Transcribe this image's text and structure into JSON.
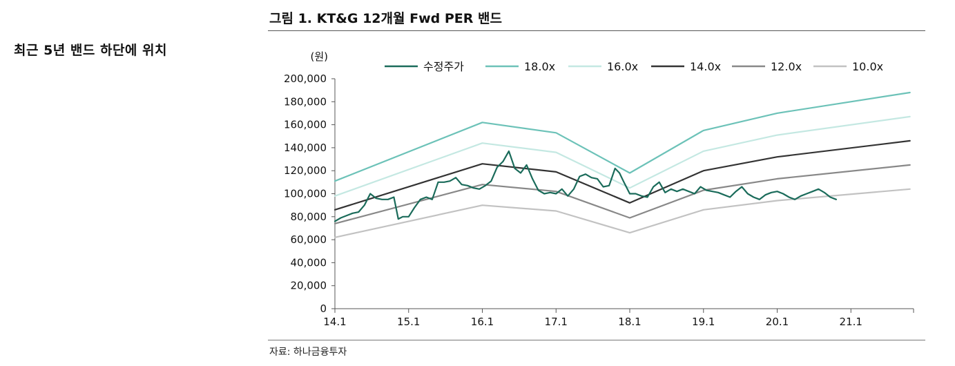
{
  "side_heading": "최근 5년 밴드 하단에 위치",
  "figure_title": "그림 1. KT&G 12개월 Fwd PER 밴드",
  "source_note": "자료: 하나금융투자",
  "colors": {
    "price": "#1a6b5a",
    "band_18": "#6cc2b8",
    "band_16": "#c4e8e2",
    "band_14": "#333333",
    "band_12": "#888888",
    "band_10": "#c2c2c2"
  },
  "chart_data": {
    "type": "line",
    "unit_label": "(원)",
    "ylim": [
      0,
      200000
    ],
    "yticks": [
      0,
      20000,
      40000,
      60000,
      80000,
      100000,
      120000,
      140000,
      160000,
      180000,
      200000
    ],
    "ytick_labels": [
      "0",
      "20,000",
      "40,000",
      "60,000",
      "80,000",
      "100,000",
      "120,000",
      "140,000",
      "160,000",
      "180,000",
      "200,000"
    ],
    "xlim": [
      0,
      7.85
    ],
    "xticks": [
      0,
      1,
      2,
      3,
      4,
      5,
      6,
      7
    ],
    "xtick_labels": [
      "14.1",
      "15.1",
      "16.1",
      "17.1",
      "18.1",
      "19.1",
      "20.1",
      "21.1"
    ],
    "legend_position": "top",
    "series": [
      {
        "name": "수정주가",
        "color_key": "price",
        "x": [
          0,
          0.08,
          0.16,
          0.24,
          0.32,
          0.4,
          0.48,
          0.56,
          0.64,
          0.72,
          0.8,
          0.86,
          0.92,
          1.0,
          1.08,
          1.16,
          1.24,
          1.32,
          1.4,
          1.48,
          1.56,
          1.64,
          1.72,
          1.8,
          1.88,
          1.96,
          2.04,
          2.12,
          2.2,
          2.28,
          2.36,
          2.44,
          2.52,
          2.6,
          2.68,
          2.76,
          2.84,
          2.92,
          3.0,
          3.08,
          3.16,
          3.24,
          3.32,
          3.4,
          3.48,
          3.56,
          3.64,
          3.72,
          3.8,
          3.86,
          3.92,
          4.0,
          4.08,
          4.16,
          4.24,
          4.32,
          4.4,
          4.48,
          4.56,
          4.64,
          4.72,
          4.8,
          4.88,
          4.96,
          5.04,
          5.12,
          5.2,
          5.28,
          5.36,
          5.44,
          5.52,
          5.6,
          5.68,
          5.76,
          5.84,
          5.92,
          6.0,
          6.08,
          6.16,
          6.24,
          6.32,
          6.4,
          6.48,
          6.56,
          6.64,
          6.72,
          6.8
        ],
        "values": [
          76000,
          79000,
          81000,
          83000,
          84000,
          90000,
          100000,
          96000,
          95000,
          95000,
          97000,
          78000,
          80000,
          80000,
          88000,
          95000,
          97000,
          95000,
          110000,
          110000,
          111000,
          114000,
          108000,
          107000,
          105000,
          104000,
          107000,
          111000,
          123000,
          128000,
          137000,
          122000,
          118000,
          125000,
          113000,
          103000,
          100000,
          101000,
          100000,
          104000,
          98000,
          104000,
          115000,
          117000,
          114000,
          113000,
          106000,
          107000,
          122000,
          118000,
          110000,
          100000,
          100000,
          98000,
          97000,
          106000,
          110000,
          101000,
          104000,
          102000,
          104000,
          102000,
          100000,
          106000,
          103000,
          102000,
          101000,
          99000,
          97000,
          102000,
          106000,
          100000,
          97000,
          95000,
          99000,
          101000,
          102000,
          100000,
          97000,
          95000,
          98000,
          100000,
          102000,
          104000,
          101000,
          97000,
          95000
        ]
      },
      {
        "name": "18.0x",
        "color_key": "band_18",
        "x": [
          0,
          2,
          3,
          4,
          5,
          6,
          7.8
        ],
        "values": [
          111000,
          162000,
          153000,
          118000,
          155000,
          170000,
          188000
        ]
      },
      {
        "name": "16.0x",
        "color_key": "band_16",
        "x": [
          0,
          2,
          3,
          4,
          5,
          6,
          7.8
        ],
        "values": [
          98000,
          144000,
          136000,
          105000,
          137000,
          151000,
          167000
        ]
      },
      {
        "name": "14.0x",
        "color_key": "band_14",
        "x": [
          0,
          2,
          3,
          4,
          5,
          6,
          7.8
        ],
        "values": [
          86000,
          126000,
          119000,
          92000,
          120000,
          132000,
          146000
        ]
      },
      {
        "name": "12.0x",
        "color_key": "band_12",
        "x": [
          0,
          2,
          3,
          4,
          5,
          6,
          7.8
        ],
        "values": [
          74000,
          108000,
          102000,
          79000,
          103000,
          113000,
          125000
        ]
      },
      {
        "name": "10.0x",
        "color_key": "band_10",
        "x": [
          0,
          2,
          3,
          4,
          5,
          6,
          7.8
        ],
        "values": [
          62000,
          90000,
          85000,
          66000,
          86000,
          94000,
          104000
        ]
      }
    ]
  }
}
